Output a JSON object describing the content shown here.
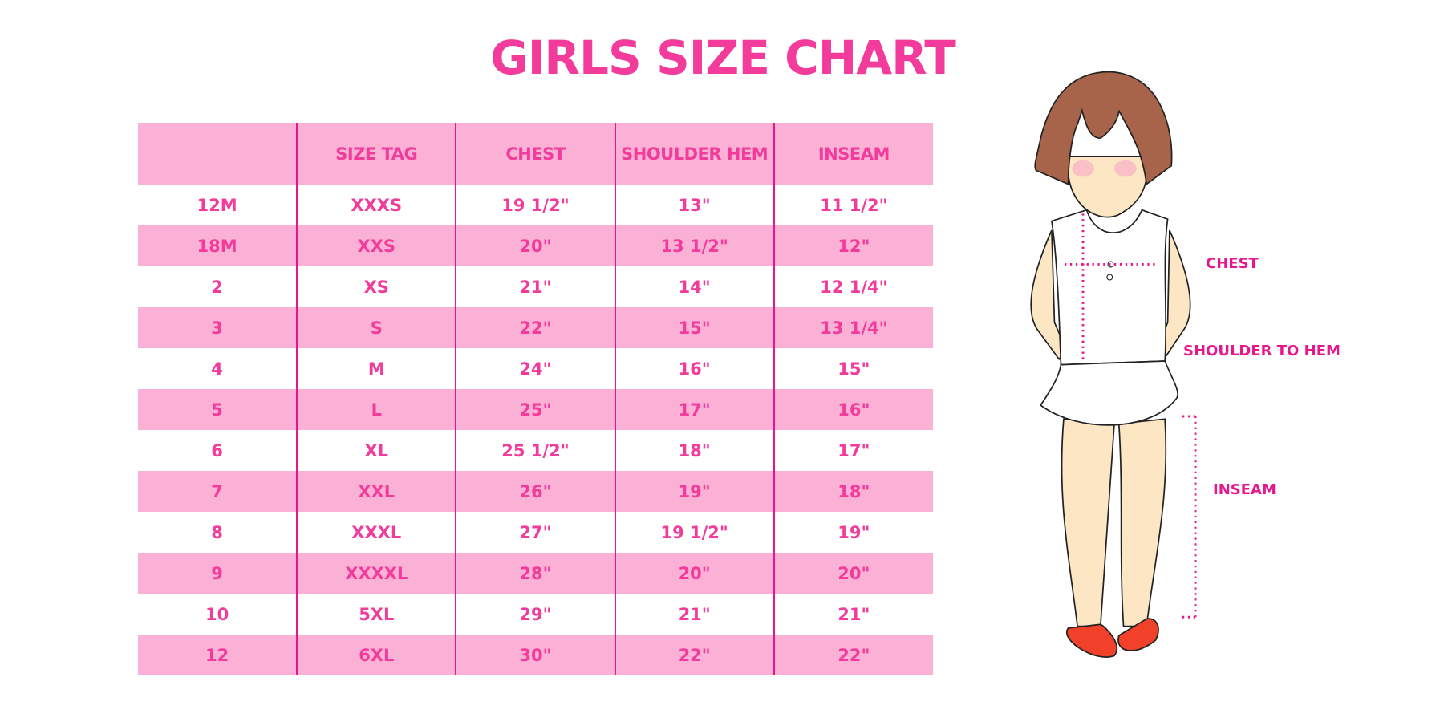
{
  "title": "GIRLS SIZE CHART",
  "table": {
    "headers": [
      "",
      "SIZE TAG",
      "CHEST",
      "SHOULDER HEM",
      "INSEAM"
    ],
    "rows": [
      [
        "12M",
        "XXXS",
        "19 1/2\"",
        "13\"",
        "11 1/2\""
      ],
      [
        "18M",
        "XXS",
        "20\"",
        "13 1/2\"",
        "12\""
      ],
      [
        "2",
        "XS",
        "21\"",
        "14\"",
        "12 1/4\""
      ],
      [
        "3",
        "S",
        "22\"",
        "15\"",
        "13 1/4\""
      ],
      [
        "4",
        "M",
        "24\"",
        "16\"",
        "15\""
      ],
      [
        "5",
        "L",
        "25\"",
        "17\"",
        "16\""
      ],
      [
        "6",
        "XL",
        "25 1/2\"",
        "18\"",
        "17\""
      ],
      [
        "7",
        "XXL",
        "26\"",
        "19\"",
        "18\""
      ],
      [
        "8",
        "XXXL",
        "27\"",
        "19 1/2\"",
        "19\""
      ],
      [
        "9",
        "XXXXL",
        "28\"",
        "20\"",
        "20\""
      ],
      [
        "10",
        "5XL",
        "29\"",
        "21\"",
        "21\""
      ],
      [
        "12",
        "6XL",
        "30\"",
        "22\"",
        "22\""
      ]
    ]
  },
  "figure": {
    "labels": {
      "chest": "CHEST",
      "shoulder_to_hem": "SHOULDER TO HEM",
      "inseam": "INSEAM"
    }
  },
  "colors": {
    "accent": "#f23b9b",
    "row_pink": "#fbb0d5",
    "divider": "#e8168c"
  }
}
